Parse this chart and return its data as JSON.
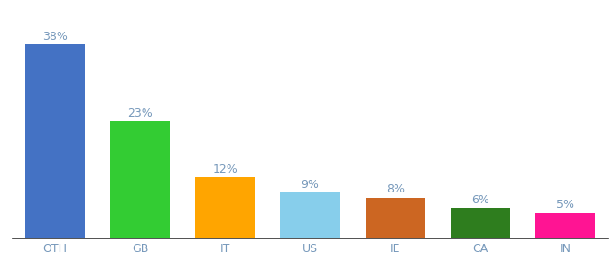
{
  "categories": [
    "OTH",
    "GB",
    "IT",
    "US",
    "IE",
    "CA",
    "IN"
  ],
  "values": [
    38,
    23,
    12,
    9,
    8,
    6,
    5
  ],
  "labels": [
    "38%",
    "23%",
    "12%",
    "9%",
    "8%",
    "6%",
    "5%"
  ],
  "bar_colors": [
    "#4472C4",
    "#33CC33",
    "#FFA500",
    "#87CEEB",
    "#CC6622",
    "#2E7D1E",
    "#FF1493"
  ],
  "background_color": "#FFFFFF",
  "ylim": [
    0,
    44
  ],
  "label_fontsize": 9,
  "tick_fontsize": 9,
  "label_color": "#7799BB",
  "tick_color": "#7799BB"
}
